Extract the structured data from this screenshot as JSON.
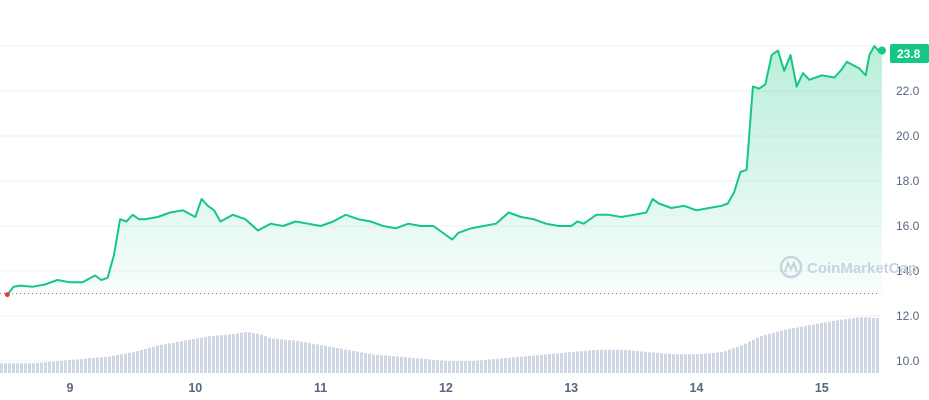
{
  "chart_data": {
    "type": "line",
    "title": "",
    "xlabel": "",
    "ylabel": "",
    "ylim": [
      9.5,
      24.3
    ],
    "grid": true,
    "line_color": "#16c784",
    "start_marker_color": "#ea3943",
    "baseline_value": 13.0,
    "x_ticks": [
      "9",
      "10",
      "11",
      "12",
      "13",
      "14",
      "15"
    ],
    "y_ticks": [
      "10.0",
      "12.0",
      "14.0",
      "16.0",
      "18.0",
      "20.0",
      "22.0"
    ],
    "current_value_label": "23.8",
    "watermark": "CoinMarketCap",
    "price": {
      "x": [
        8.5,
        8.55,
        8.6,
        8.7,
        8.8,
        8.9,
        9.0,
        9.1,
        9.2,
        9.25,
        9.3,
        9.35,
        9.4,
        9.45,
        9.5,
        9.55,
        9.6,
        9.7,
        9.8,
        9.9,
        10.0,
        10.05,
        10.1,
        10.15,
        10.2,
        10.3,
        10.4,
        10.5,
        10.6,
        10.7,
        10.8,
        10.9,
        11.0,
        11.1,
        11.2,
        11.3,
        11.4,
        11.5,
        11.6,
        11.7,
        11.8,
        11.9,
        12.0,
        12.05,
        12.1,
        12.2,
        12.3,
        12.4,
        12.5,
        12.6,
        12.7,
        12.8,
        12.9,
        13.0,
        13.05,
        13.1,
        13.2,
        13.3,
        13.4,
        13.5,
        13.6,
        13.65,
        13.7,
        13.8,
        13.9,
        14.0,
        14.1,
        14.2,
        14.25,
        14.3,
        14.35,
        14.4,
        14.45,
        14.5,
        14.55,
        14.6,
        14.65,
        14.7,
        14.75,
        14.8,
        14.85,
        14.9,
        15.0,
        15.1,
        15.15,
        15.2,
        15.3,
        15.35,
        15.38,
        15.42,
        15.45,
        15.48
      ],
      "y": [
        12.95,
        13.3,
        13.35,
        13.3,
        13.4,
        13.6,
        13.5,
        13.5,
        13.8,
        13.6,
        13.7,
        14.7,
        16.3,
        16.2,
        16.5,
        16.3,
        16.3,
        16.4,
        16.6,
        16.7,
        16.4,
        17.2,
        16.9,
        16.7,
        16.2,
        16.5,
        16.3,
        15.8,
        16.1,
        16.0,
        16.2,
        16.1,
        16.0,
        16.2,
        16.5,
        16.3,
        16.2,
        16.0,
        15.9,
        16.1,
        16.0,
        16.0,
        15.6,
        15.4,
        15.7,
        15.9,
        16.0,
        16.1,
        16.6,
        16.4,
        16.3,
        16.1,
        16.0,
        16.0,
        16.2,
        16.1,
        16.5,
        16.5,
        16.4,
        16.5,
        16.6,
        17.2,
        17.0,
        16.8,
        16.9,
        16.7,
        16.8,
        16.9,
        17.0,
        17.5,
        18.4,
        18.5,
        22.2,
        22.1,
        22.3,
        23.6,
        23.8,
        22.9,
        23.6,
        22.2,
        22.8,
        22.5,
        22.7,
        22.6,
        22.9,
        23.3,
        23.0,
        22.7,
        23.6,
        24.0,
        23.8,
        23.8
      ]
    },
    "volume": {
      "x": [
        8.5,
        8.7,
        8.9,
        9.1,
        9.3,
        9.5,
        9.7,
        9.9,
        10.1,
        10.3,
        10.4,
        10.5,
        10.6,
        10.8,
        11.0,
        11.2,
        11.4,
        11.6,
        11.8,
        12.0,
        12.2,
        12.4,
        12.6,
        12.8,
        13.0,
        13.2,
        13.4,
        13.6,
        13.8,
        14.0,
        14.2,
        14.35,
        14.5,
        14.7,
        14.9,
        15.1,
        15.3,
        15.45,
        15.48
      ],
      "y": [
        9.9,
        9.9,
        10.0,
        10.1,
        10.2,
        10.4,
        10.7,
        10.9,
        11.1,
        11.2,
        11.3,
        11.2,
        11.0,
        10.9,
        10.7,
        10.5,
        10.3,
        10.2,
        10.1,
        10.0,
        10.0,
        10.1,
        10.2,
        10.3,
        10.4,
        10.5,
        10.5,
        10.4,
        10.3,
        10.3,
        10.4,
        10.7,
        11.1,
        11.4,
        11.6,
        11.8,
        11.95,
        11.9,
        11.8
      ]
    }
  }
}
